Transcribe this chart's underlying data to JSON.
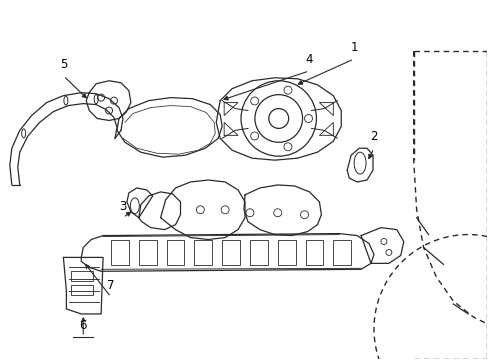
{
  "background_color": "#ffffff",
  "line_color": "#2a2a2a",
  "label_color": "#000000",
  "figure_width": 4.89,
  "figure_height": 3.6,
  "dpi": 100
}
